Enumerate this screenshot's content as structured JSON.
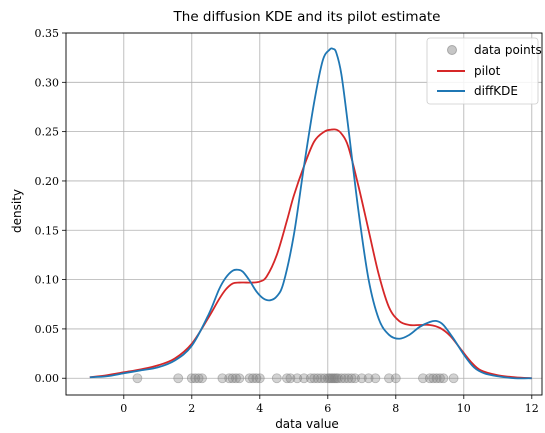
{
  "chart_data": {
    "type": "line",
    "title": "The diffusion KDE and its pilot estimate",
    "xlabel": "data value",
    "ylabel": "density",
    "xlim": [
      -1.7,
      12.3
    ],
    "ylim": [
      -0.017,
      0.35
    ],
    "xticks": [
      0,
      2,
      4,
      6,
      8,
      10,
      12
    ],
    "yticks": [
      0.0,
      0.05,
      0.1,
      0.15,
      0.2,
      0.25,
      0.3,
      0.35
    ],
    "xtick_labels": [
      "0",
      "2",
      "4",
      "6",
      "8",
      "10",
      "12"
    ],
    "ytick_labels": [
      "0.00",
      "0.05",
      "0.10",
      "0.15",
      "0.20",
      "0.25",
      "0.30",
      "0.35"
    ],
    "grid": true,
    "legend_position": "top-right",
    "points": {
      "name": "data points",
      "color": "#808080",
      "x": [
        0.4,
        1.6,
        2.0,
        2.1,
        2.2,
        2.3,
        2.9,
        3.1,
        3.2,
        3.3,
        3.4,
        3.7,
        3.8,
        3.9,
        4.0,
        4.5,
        4.8,
        4.9,
        5.1,
        5.3,
        5.5,
        5.6,
        5.7,
        5.8,
        5.9,
        6.0,
        6.05,
        6.1,
        6.15,
        6.2,
        6.25,
        6.3,
        6.4,
        6.5,
        6.6,
        6.7,
        6.8,
        7.0,
        7.2,
        7.4,
        7.8,
        8.0,
        8.8,
        9.0,
        9.1,
        9.2,
        9.3,
        9.4,
        9.7
      ]
    },
    "series": [
      {
        "name": "pilot",
        "color": "#d62728",
        "x": [
          -1.0,
          -0.5,
          0.0,
          0.5,
          1.0,
          1.5,
          2.0,
          2.5,
          2.8,
          3.0,
          3.2,
          3.4,
          3.6,
          3.8,
          4.0,
          4.2,
          4.5,
          4.8,
          5.0,
          5.3,
          5.6,
          5.9,
          6.1,
          6.25,
          6.4,
          6.6,
          6.9,
          7.2,
          7.5,
          7.8,
          8.1,
          8.4,
          8.7,
          9.0,
          9.3,
          9.6,
          9.9,
          10.2,
          10.5,
          11.0,
          11.5,
          12.0
        ],
        "values": [
          0.001,
          0.003,
          0.006,
          0.009,
          0.013,
          0.02,
          0.035,
          0.062,
          0.08,
          0.09,
          0.096,
          0.097,
          0.097,
          0.097,
          0.098,
          0.103,
          0.125,
          0.16,
          0.185,
          0.215,
          0.24,
          0.25,
          0.252,
          0.252,
          0.248,
          0.235,
          0.195,
          0.15,
          0.105,
          0.072,
          0.058,
          0.054,
          0.054,
          0.054,
          0.051,
          0.043,
          0.03,
          0.017,
          0.008,
          0.003,
          0.001,
          0.0
        ]
      },
      {
        "name": "diffKDE",
        "color": "#1f77b4",
        "x": [
          -1.0,
          -0.5,
          0.0,
          0.5,
          1.0,
          1.5,
          2.0,
          2.5,
          2.8,
          3.0,
          3.2,
          3.35,
          3.5,
          3.7,
          3.9,
          4.1,
          4.3,
          4.5,
          4.7,
          5.0,
          5.3,
          5.6,
          5.85,
          6.05,
          6.15,
          6.25,
          6.4,
          6.6,
          6.9,
          7.2,
          7.5,
          7.8,
          8.1,
          8.4,
          8.7,
          9.0,
          9.2,
          9.4,
          9.7,
          10.0,
          10.3,
          10.6,
          11.0,
          11.5,
          12.0
        ],
        "values": [
          0.001,
          0.002,
          0.005,
          0.008,
          0.011,
          0.018,
          0.033,
          0.065,
          0.09,
          0.102,
          0.109,
          0.11,
          0.108,
          0.099,
          0.088,
          0.081,
          0.079,
          0.083,
          0.097,
          0.145,
          0.215,
          0.28,
          0.322,
          0.333,
          0.334,
          0.33,
          0.308,
          0.255,
          0.17,
          0.1,
          0.06,
          0.044,
          0.04,
          0.044,
          0.052,
          0.057,
          0.058,
          0.054,
          0.04,
          0.024,
          0.011,
          0.005,
          0.002,
          0.0,
          0.0
        ]
      }
    ]
  }
}
